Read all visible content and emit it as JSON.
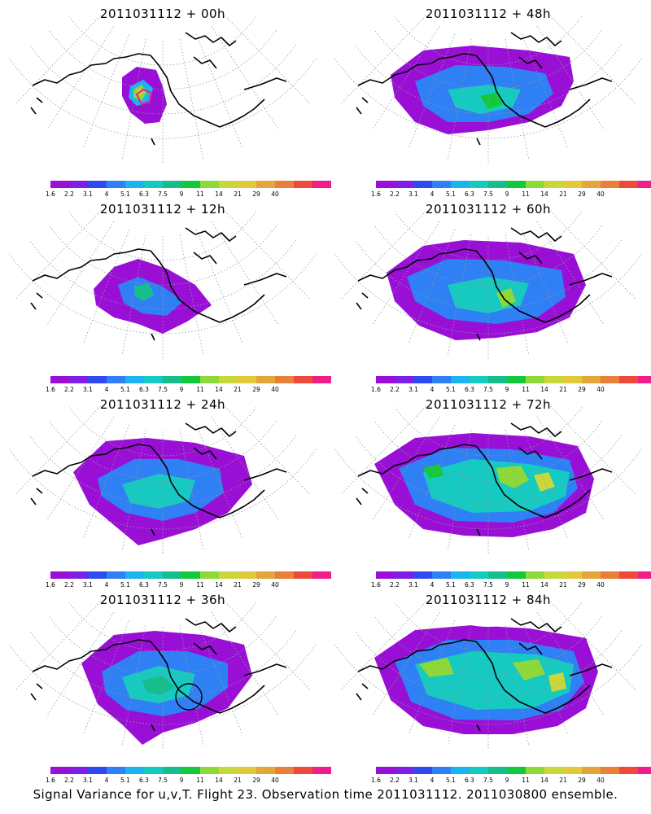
{
  "panels": [
    {
      "title": "2011031112 + 00h"
    },
    {
      "title": "2011031112 + 48h"
    },
    {
      "title": "2011031112 + 12h"
    },
    {
      "title": "2011031112 + 60h"
    },
    {
      "title": "2011031112 + 24h"
    },
    {
      "title": "2011031112 + 72h"
    },
    {
      "title": "2011031112 + 36h"
    },
    {
      "title": "2011031112 + 84h"
    }
  ],
  "colorbar": {
    "colors": [
      "#9a0fd6",
      "#7f1fe6",
      "#2f4bf0",
      "#2f7ff5",
      "#1bb4ef",
      "#16c9c1",
      "#17bd8a",
      "#14c83c",
      "#8ed93a",
      "#c8d83a",
      "#e0c93a",
      "#e3a63a",
      "#e8803a",
      "#ec4a3a",
      "#f01e88"
    ],
    "labels": [
      "1.6",
      "2.2",
      "3.1",
      "4",
      "5.1",
      "6.3",
      "7.5",
      "9",
      "11",
      "14",
      "21",
      "29",
      "40"
    ]
  },
  "caption": "Signal Variance for u,v,T. Flight 23. Observation time 2011031112. 2011030800 ensemble."
}
